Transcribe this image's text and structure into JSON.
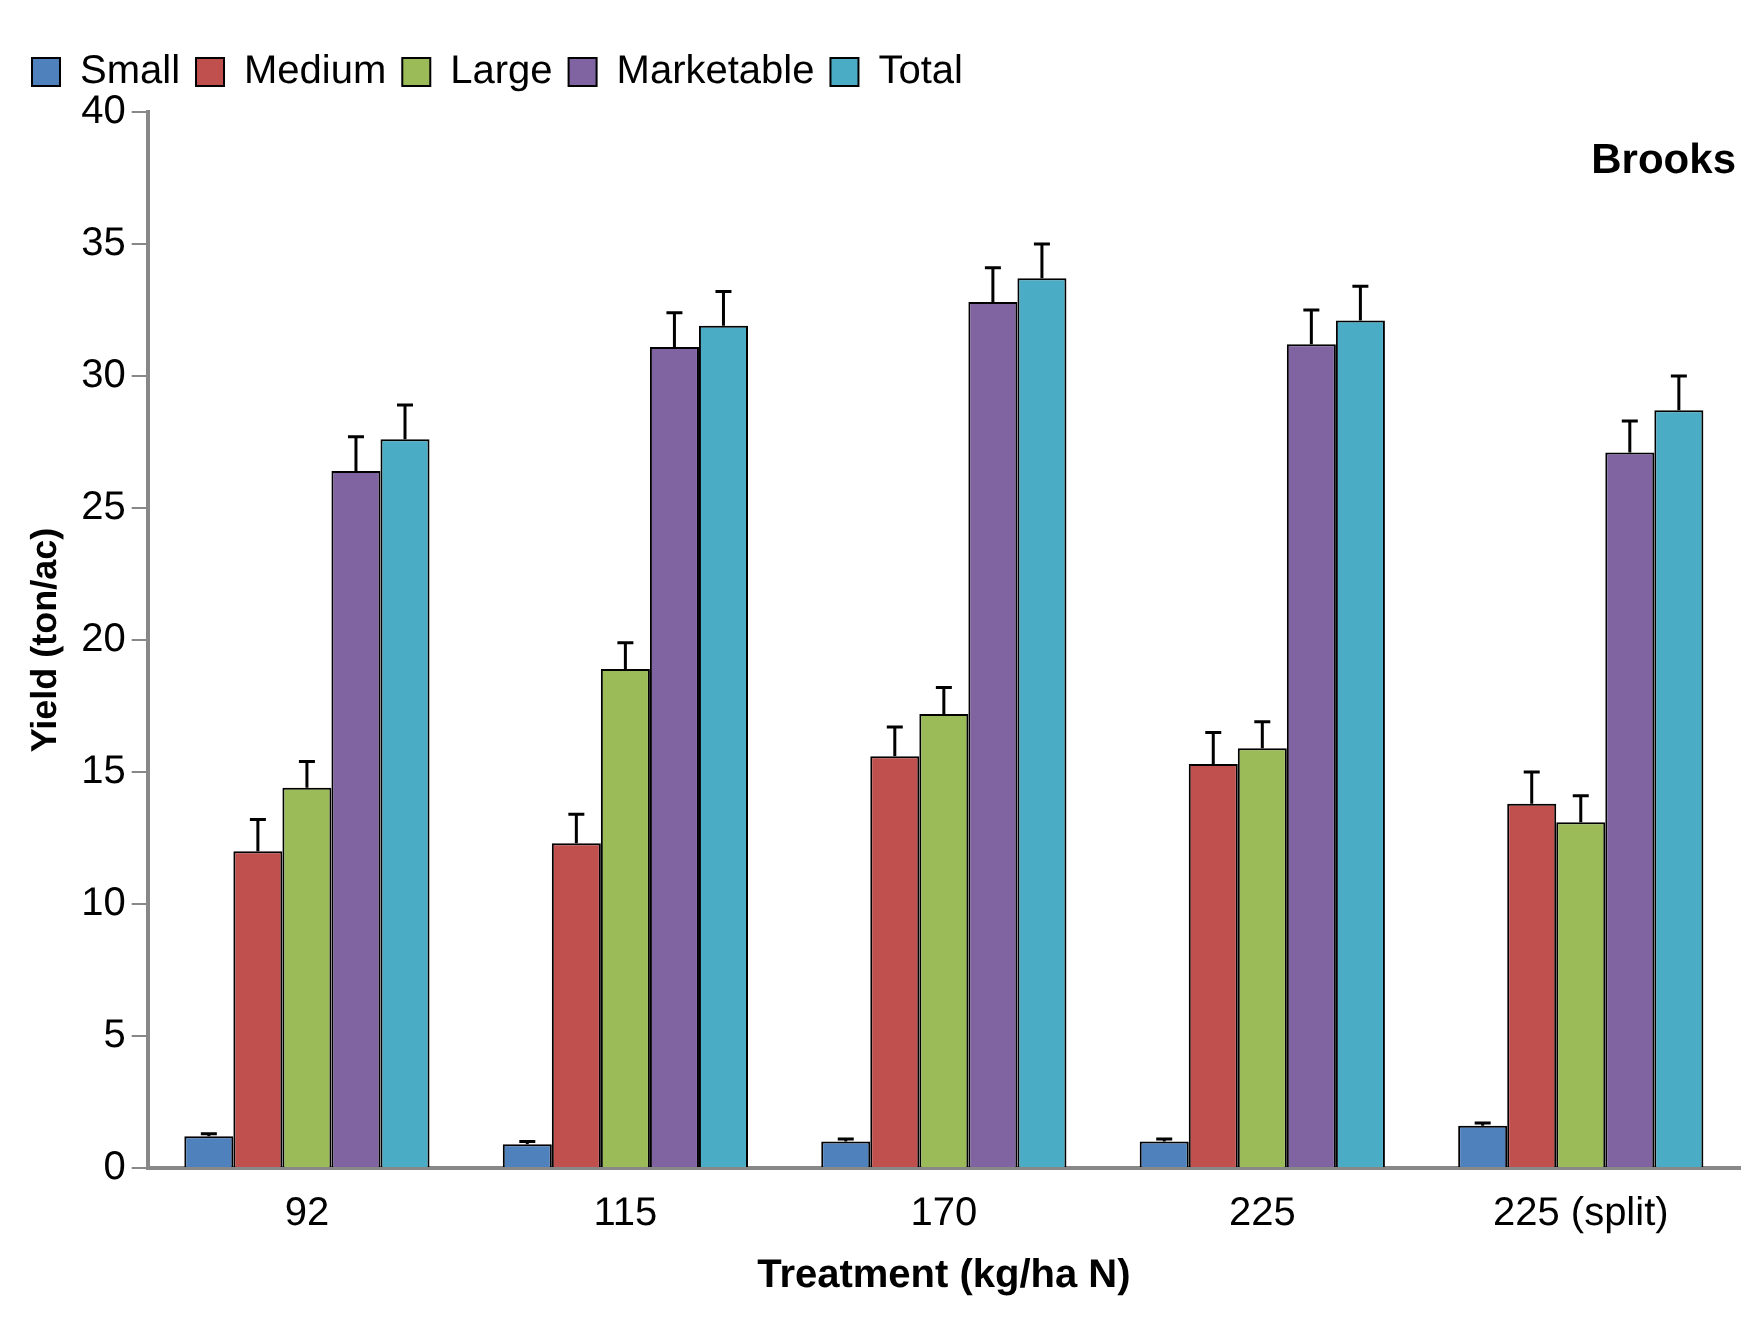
{
  "chart_data": {
    "type": "bar",
    "xlabel": "Treatment (kg/ha N)",
    "ylabel": "Yield (ton/ac)",
    "categories": [
      "92",
      "115",
      "170",
      "225",
      "225 (split)"
    ],
    "series": [
      {
        "name": "Small",
        "color": "#4f81bd",
        "values": [
          1.2,
          0.9,
          1.0,
          1.0,
          1.6
        ],
        "errors": [
          [
            1.2,
            1.3
          ],
          [
            0.9,
            1.0
          ],
          [
            1.0,
            1.1
          ],
          [
            1.0,
            1.1
          ],
          [
            1.6,
            1.7
          ]
        ]
      },
      {
        "name": "Medium",
        "color": "#c0504d",
        "values": [
          12.0,
          12.3,
          15.6,
          15.3,
          13.8
        ],
        "errors": [
          [
            12.0,
            13.2
          ],
          [
            12.3,
            13.4
          ],
          [
            15.6,
            16.7
          ],
          [
            15.3,
            16.5
          ],
          [
            13.8,
            15.0
          ]
        ]
      },
      {
        "name": "Large",
        "color": "#9bbb59",
        "values": [
          14.4,
          18.9,
          17.2,
          15.9,
          13.1
        ],
        "errors": [
          [
            14.4,
            15.4
          ],
          [
            18.9,
            19.9
          ],
          [
            17.2,
            18.2
          ],
          [
            15.9,
            16.9
          ],
          [
            13.1,
            14.1
          ]
        ]
      },
      {
        "name": "Marketable",
        "color": "#8064a2",
        "values": [
          26.4,
          31.1,
          32.8,
          31.2,
          27.1
        ],
        "errors": [
          [
            26.4,
            27.7
          ],
          [
            31.1,
            32.4
          ],
          [
            32.8,
            34.1
          ],
          [
            31.2,
            32.5
          ],
          [
            27.1,
            28.3
          ]
        ]
      },
      {
        "name": "Total",
        "color": "#4bacc6",
        "values": [
          27.6,
          31.9,
          33.7,
          32.1,
          28.7
        ],
        "errors": [
          [
            27.6,
            28.9
          ],
          [
            31.9,
            33.2
          ],
          [
            33.7,
            35.0
          ],
          [
            32.1,
            33.4
          ],
          [
            28.7,
            30.0
          ]
        ]
      }
    ],
    "ylim": [
      0,
      40
    ],
    "yticks": [
      0,
      5,
      10,
      15,
      20,
      25,
      30,
      35,
      40
    ],
    "grid": false,
    "legend": "top left",
    "annotations": [
      "Brooks"
    ]
  }
}
